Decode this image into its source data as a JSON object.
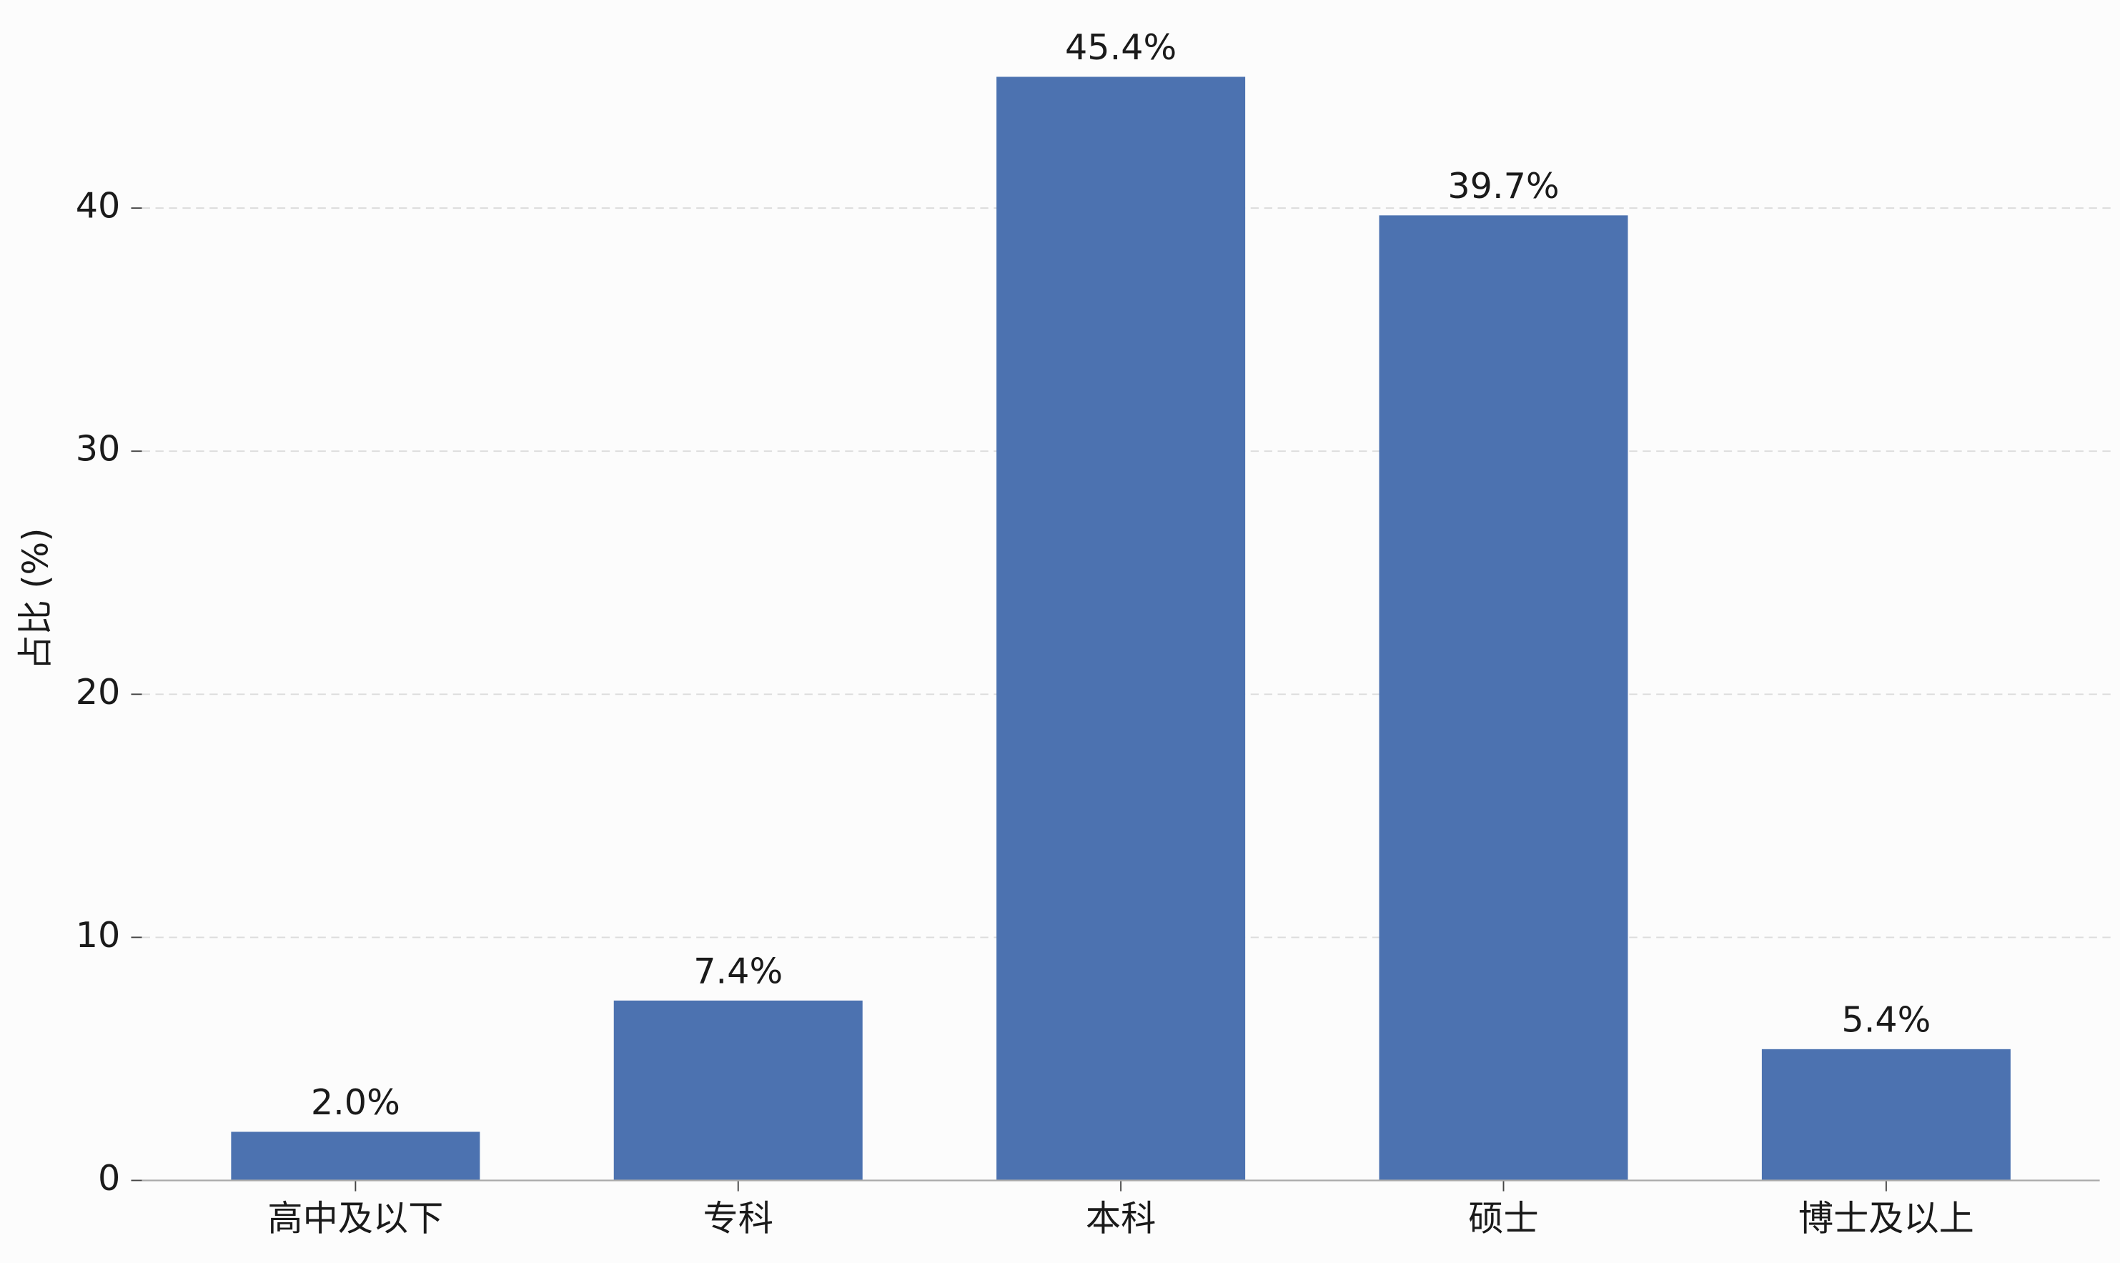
{
  "chart_data": {
    "type": "bar",
    "ylabel": "占比 (%)",
    "categories": [
      "高中及以下",
      "专科",
      "本科",
      "硕士",
      "博士及以上"
    ],
    "values": [
      2.0,
      7.4,
      45.4,
      39.7,
      5.4
    ],
    "value_labels": [
      "2.0%",
      "7.4%",
      "45.4%",
      "39.7%",
      "5.4%"
    ],
    "color": "#4c72b0",
    "ylim": [
      0,
      48
    ],
    "yticks": [
      0,
      10,
      20,
      30,
      40
    ],
    "grid": true
  }
}
